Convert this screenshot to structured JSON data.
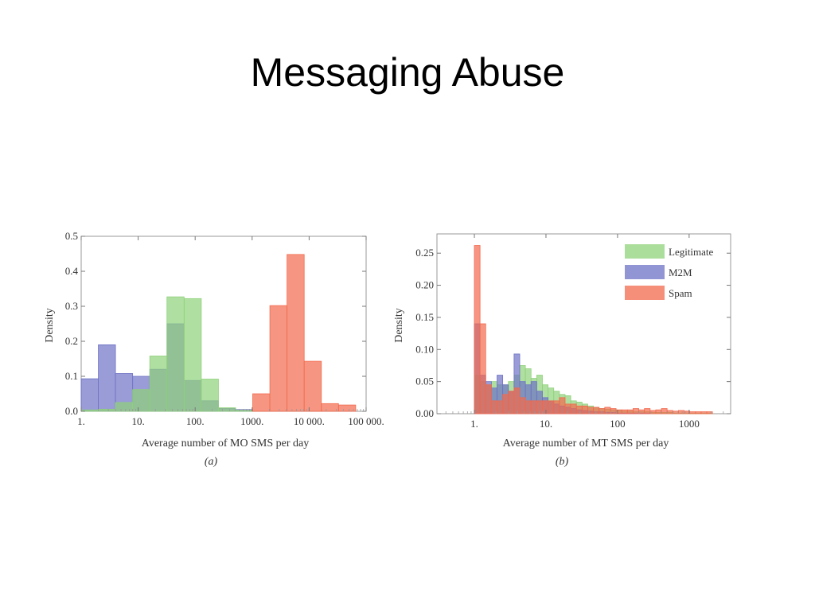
{
  "slide": {
    "title": "Messaging Abuse"
  },
  "colors": {
    "legitimate": "#8fd17a",
    "m2m": "#6e72c4",
    "spam": "#f2694d"
  },
  "chart_data": [
    {
      "type": "bar",
      "panel_label": "(a)",
      "xlabel": "Average number of MO SMS per day",
      "ylabel": "Density",
      "x_scale": "log",
      "xlim": [
        1,
        100000
      ],
      "ylim": [
        0,
        0.5
      ],
      "x_ticks": [
        {
          "value": 1,
          "label": "1."
        },
        {
          "value": 10,
          "label": "10."
        },
        {
          "value": 100,
          "label": "100."
        },
        {
          "value": 1000,
          "label": "1000."
        },
        {
          "value": 10000,
          "label": "10 000."
        },
        {
          "value": 100000,
          "label": "100 000."
        }
      ],
      "y_ticks": [
        {
          "value": 0,
          "label": "0.0"
        },
        {
          "value": 0.1,
          "label": "0.1"
        },
        {
          "value": 0.2,
          "label": "0.2"
        },
        {
          "value": 0.3,
          "label": "0.3"
        },
        {
          "value": 0.4,
          "label": "0.4"
        },
        {
          "value": 0.5,
          "label": "0.5"
        }
      ],
      "series": [
        {
          "name": "M2M",
          "color_key": "m2m",
          "bins": [
            [
              1,
              2,
              0.093
            ],
            [
              2,
              4,
              0.19
            ],
            [
              4,
              8,
              0.108
            ],
            [
              8,
              16,
              0.1
            ],
            [
              16,
              32,
              0.12
            ],
            [
              32,
              64,
              0.25
            ],
            [
              64,
              128,
              0.088
            ],
            [
              128,
              256,
              0.03
            ],
            [
              256,
              512,
              0.008
            ],
            [
              512,
              1024,
              0.005
            ]
          ]
        },
        {
          "name": "Legitimate",
          "color_key": "legitimate",
          "bins": [
            [
              1,
              2,
              0.004
            ],
            [
              2,
              4,
              0.006
            ],
            [
              4,
              8,
              0.025
            ],
            [
              8,
              16,
              0.062
            ],
            [
              16,
              32,
              0.158
            ],
            [
              32,
              64,
              0.327
            ],
            [
              64,
              128,
              0.322
            ],
            [
              128,
              256,
              0.092
            ],
            [
              256,
              512,
              0.01
            ],
            [
              512,
              1024,
              0.003
            ]
          ]
        },
        {
          "name": "Spam",
          "color_key": "spam",
          "bins": [
            [
              1024,
              2048,
              0.05
            ],
            [
              2048,
              4096,
              0.302
            ],
            [
              4096,
              8192,
              0.448
            ],
            [
              8192,
              16384,
              0.143
            ],
            [
              16384,
              32768,
              0.022
            ],
            [
              32768,
              65536,
              0.018
            ]
          ]
        }
      ]
    },
    {
      "type": "bar",
      "panel_label": "(b)",
      "xlabel": "Average number of MT SMS per day",
      "ylabel": "Density",
      "x_scale": "log",
      "xlim": [
        0.3,
        3800
      ],
      "ylim": [
        0,
        0.28
      ],
      "x_ticks": [
        {
          "value": 1,
          "label": "1."
        },
        {
          "value": 10,
          "label": "10."
        },
        {
          "value": 100,
          "label": "100"
        },
        {
          "value": 1000,
          "label": "1000"
        }
      ],
      "y_ticks": [
        {
          "value": 0,
          "label": "0.00"
        },
        {
          "value": 0.05,
          "label": "0.05"
        },
        {
          "value": 0.1,
          "label": "0.10"
        },
        {
          "value": 0.15,
          "label": "0.15"
        },
        {
          "value": 0.2,
          "label": "0.20"
        },
        {
          "value": 0.25,
          "label": "0.25"
        }
      ],
      "bin_start": 1,
      "bin_ratio": 1.2,
      "legend": {
        "position": "top-right",
        "items": [
          {
            "label": "Legitimate",
            "color_key": "legitimate"
          },
          {
            "label": "M2M",
            "color_key": "m2m"
          },
          {
            "label": "Spam",
            "color_key": "spam"
          }
        ]
      },
      "series": [
        {
          "name": "Legitimate",
          "color_key": "legitimate",
          "heights": [
            0.06,
            0.05,
            0.045,
            0.05,
            0.045,
            0.045,
            0.05,
            0.06,
            0.075,
            0.07,
            0.055,
            0.06,
            0.045,
            0.04,
            0.035,
            0.03,
            0.028,
            0.02,
            0.018,
            0.015,
            0.012,
            0.01,
            0.008,
            0.007,
            0.006,
            0.005,
            0.004,
            0.004,
            0.003,
            0.003,
            0.003,
            0.002,
            0.002,
            0.002,
            0.002,
            0.001,
            0.001,
            0.001,
            0.001,
            0.001,
            0.001,
            0.001
          ]
        },
        {
          "name": "M2M",
          "color_key": "m2m",
          "heights": [
            0.14,
            0.06,
            0.05,
            0.04,
            0.06,
            0.045,
            0.035,
            0.093,
            0.05,
            0.045,
            0.05,
            0.035,
            0.025,
            0.02,
            0.015,
            0.012,
            0.01,
            0.008,
            0.006,
            0.005,
            0.004,
            0.003,
            0.003,
            0.002,
            0.002,
            0.001,
            0.001,
            0.001,
            0.001,
            0.001,
            0.001,
            0,
            0,
            0,
            0,
            0,
            0,
            0,
            0,
            0,
            0,
            0
          ]
        },
        {
          "name": "Spam",
          "color_key": "spam",
          "heights": [
            0.262,
            0.14,
            0.045,
            0.02,
            0.02,
            0.03,
            0.035,
            0.04,
            0.025,
            0.02,
            0.02,
            0.02,
            0.02,
            0.02,
            0.02,
            0.025,
            0.015,
            0.015,
            0.012,
            0.012,
            0.01,
            0.01,
            0.008,
            0.01,
            0.008,
            0.006,
            0.006,
            0.006,
            0.008,
            0.006,
            0.008,
            0.005,
            0.006,
            0.008,
            0.005,
            0.004,
            0.005,
            0.004,
            0.003,
            0.003,
            0.003,
            0.003
          ]
        }
      ]
    }
  ]
}
